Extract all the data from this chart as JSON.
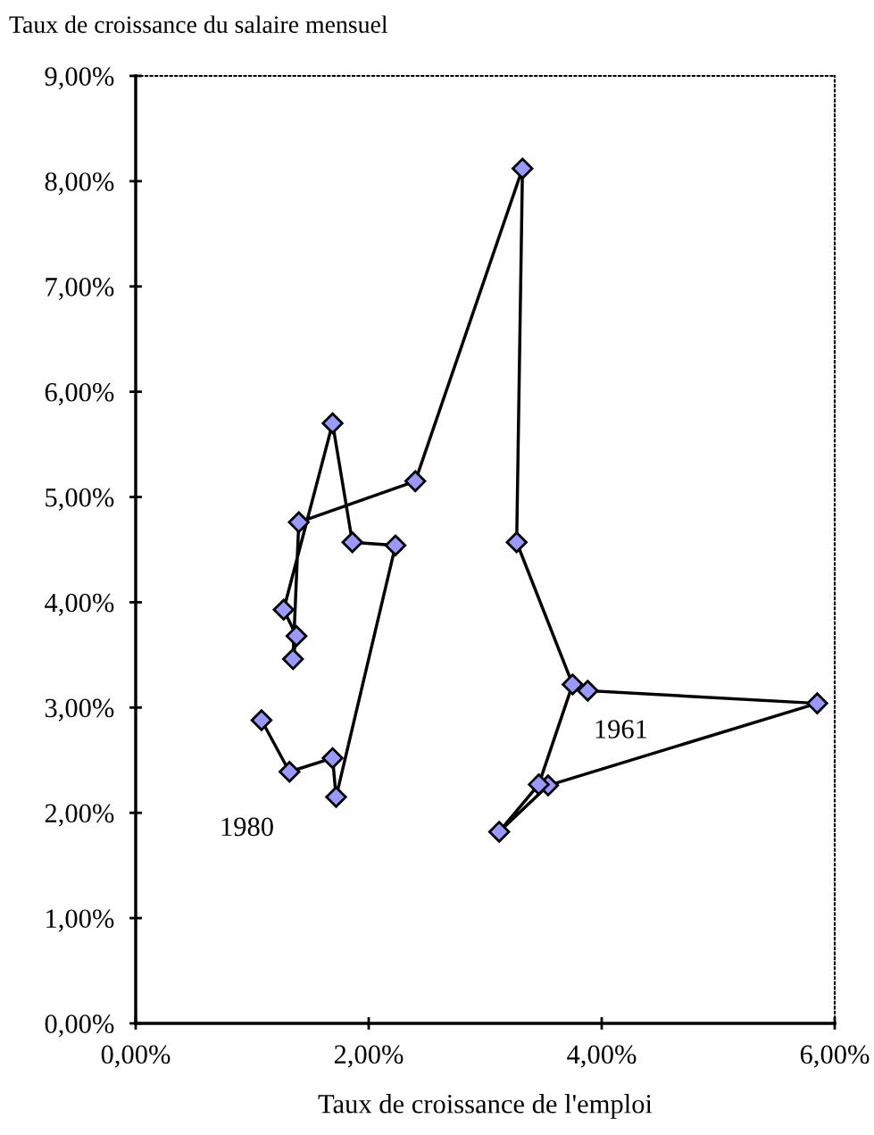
{
  "chart_data": {
    "type": "line",
    "ylabel": "Taux de croissance du salaire mensuel",
    "xlabel": "Taux de croissance de l'emploi",
    "marker": "diamond",
    "line_style": "solid",
    "grid": false,
    "legend": false,
    "series": [
      {
        "color": "#9999ff",
        "x": [
          3.88,
          5.85,
          3.54,
          3.12,
          3.46,
          3.75,
          3.27,
          3.32,
          2.4,
          1.4,
          1.35,
          1.38,
          1.27,
          1.69,
          1.86,
          2.23,
          1.72,
          1.69,
          1.32,
          1.08
        ],
        "values": [
          3.16,
          3.04,
          2.26,
          1.82,
          2.27,
          3.22,
          4.57,
          8.12,
          5.15,
          4.76,
          3.46,
          3.68,
          3.93,
          5.7,
          4.57,
          4.54,
          2.15,
          2.52,
          2.39,
          2.88
        ]
      }
    ],
    "xlim": [
      0,
      6
    ],
    "xticks": [
      {
        "value": 0,
        "label": "0,00%"
      },
      {
        "value": 2,
        "label": "2,00%"
      },
      {
        "value": 4,
        "label": "4,00%"
      },
      {
        "value": 6,
        "label": "6,00%"
      }
    ],
    "ylim": [
      0,
      9
    ],
    "yticks": [
      {
        "value": 0,
        "label": "0,00%"
      },
      {
        "value": 1,
        "label": "1,00%"
      },
      {
        "value": 2,
        "label": "2,00%"
      },
      {
        "value": 3,
        "label": "3,00%"
      },
      {
        "value": 4,
        "label": "4,00%"
      },
      {
        "value": 5,
        "label": "5,00%"
      },
      {
        "value": 6,
        "label": "6,00%"
      },
      {
        "value": 7,
        "label": "7,00%"
      },
      {
        "value": 8,
        "label": "8,00%"
      },
      {
        "value": 9,
        "label": "9,00%"
      }
    ],
    "annotations": [
      "1961",
      "1980"
    ]
  }
}
